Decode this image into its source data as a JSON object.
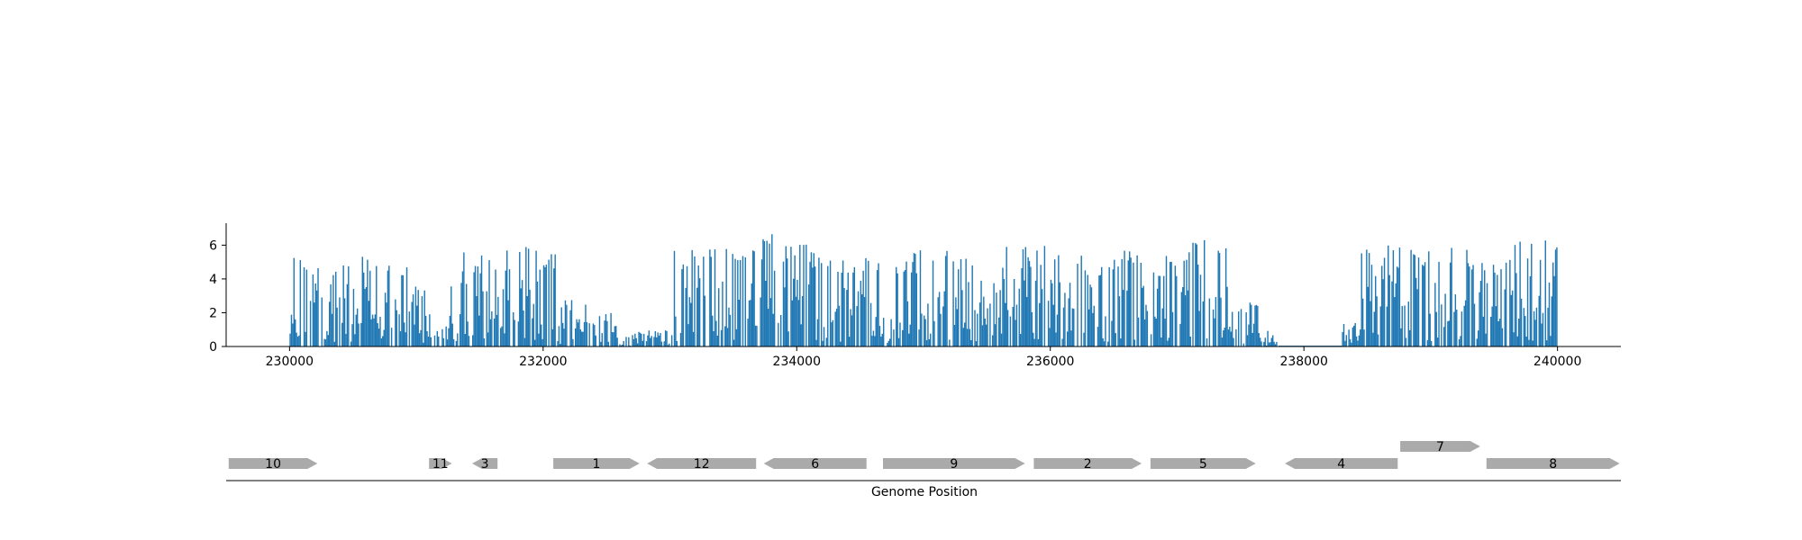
{
  "chart_data": {
    "type": "bar",
    "coverage": {
      "color": "#1f77b4",
      "xlim": [
        229500,
        240500
      ],
      "ylim": [
        0,
        7.3
      ],
      "x_ticks": [
        230000,
        232000,
        234000,
        236000,
        238000,
        240000
      ],
      "y_ticks": [
        0,
        2,
        4,
        6
      ],
      "regions": [
        {
          "start": 230000,
          "end": 230950,
          "max": 5.4
        },
        {
          "start": 230950,
          "end": 231150,
          "max": 3.8
        },
        {
          "start": 231150,
          "end": 231250,
          "max": 1.2
        },
        {
          "start": 231250,
          "end": 231700,
          "max": 5.7
        },
        {
          "start": 231700,
          "end": 232100,
          "max": 5.9
        },
        {
          "start": 232100,
          "end": 232400,
          "max": 2.8
        },
        {
          "start": 232400,
          "end": 232600,
          "max": 2.0
        },
        {
          "start": 232600,
          "end": 232800,
          "max": 0.9
        },
        {
          "start": 232800,
          "end": 233000,
          "max": 1.0
        },
        {
          "start": 233000,
          "end": 233700,
          "max": 5.8
        },
        {
          "start": 233700,
          "end": 234100,
          "max": 6.7
        },
        {
          "start": 234100,
          "end": 234650,
          "max": 5.7
        },
        {
          "start": 234650,
          "end": 234750,
          "max": 1.8
        },
        {
          "start": 234750,
          "end": 235400,
          "max": 5.7
        },
        {
          "start": 235400,
          "end": 236100,
          "max": 6.0
        },
        {
          "start": 236100,
          "end": 236500,
          "max": 5.5
        },
        {
          "start": 236500,
          "end": 236800,
          "max": 5.8
        },
        {
          "start": 236800,
          "end": 237000,
          "max": 5.5
        },
        {
          "start": 237000,
          "end": 237400,
          "max": 6.4
        },
        {
          "start": 237400,
          "end": 237650,
          "max": 2.6
        },
        {
          "start": 237650,
          "end": 237800,
          "max": 1.0
        },
        {
          "start": 237800,
          "end": 238300,
          "max": 0.05
        },
        {
          "start": 238300,
          "end": 238450,
          "max": 1.5
        },
        {
          "start": 238450,
          "end": 239300,
          "max": 6.1
        },
        {
          "start": 239300,
          "end": 239600,
          "max": 5.0
        },
        {
          "start": 239600,
          "end": 240000,
          "max": 6.3
        }
      ]
    },
    "genes": [
      {
        "label": "10",
        "start": 229520,
        "end": 230220,
        "strand": "+",
        "row": 0
      },
      {
        "label": "11",
        "start": 231100,
        "end": 231280,
        "strand": "+",
        "row": 0
      },
      {
        "label": "3",
        "start": 231440,
        "end": 231640,
        "strand": "-",
        "row": 0
      },
      {
        "label": "1",
        "start": 232080,
        "end": 232760,
        "strand": "+",
        "row": 0
      },
      {
        "label": "12",
        "start": 232820,
        "end": 233680,
        "strand": "-",
        "row": 0
      },
      {
        "label": "6",
        "start": 233740,
        "end": 234550,
        "strand": "-",
        "row": 0
      },
      {
        "label": "9",
        "start": 234680,
        "end": 235800,
        "strand": "+",
        "row": 0
      },
      {
        "label": "2",
        "start": 235870,
        "end": 236720,
        "strand": "+",
        "row": 0
      },
      {
        "label": "5",
        "start": 236790,
        "end": 237620,
        "strand": "+",
        "row": 0
      },
      {
        "label": "4",
        "start": 237850,
        "end": 238740,
        "strand": "-",
        "row": 0
      },
      {
        "label": "7",
        "start": 238760,
        "end": 239390,
        "strand": "+",
        "row": 1
      },
      {
        "label": "8",
        "start": 239440,
        "end": 240490,
        "strand": "+",
        "row": 0
      }
    ],
    "gene_color": "#aaaaaa",
    "xlabel": "Genome Position"
  }
}
